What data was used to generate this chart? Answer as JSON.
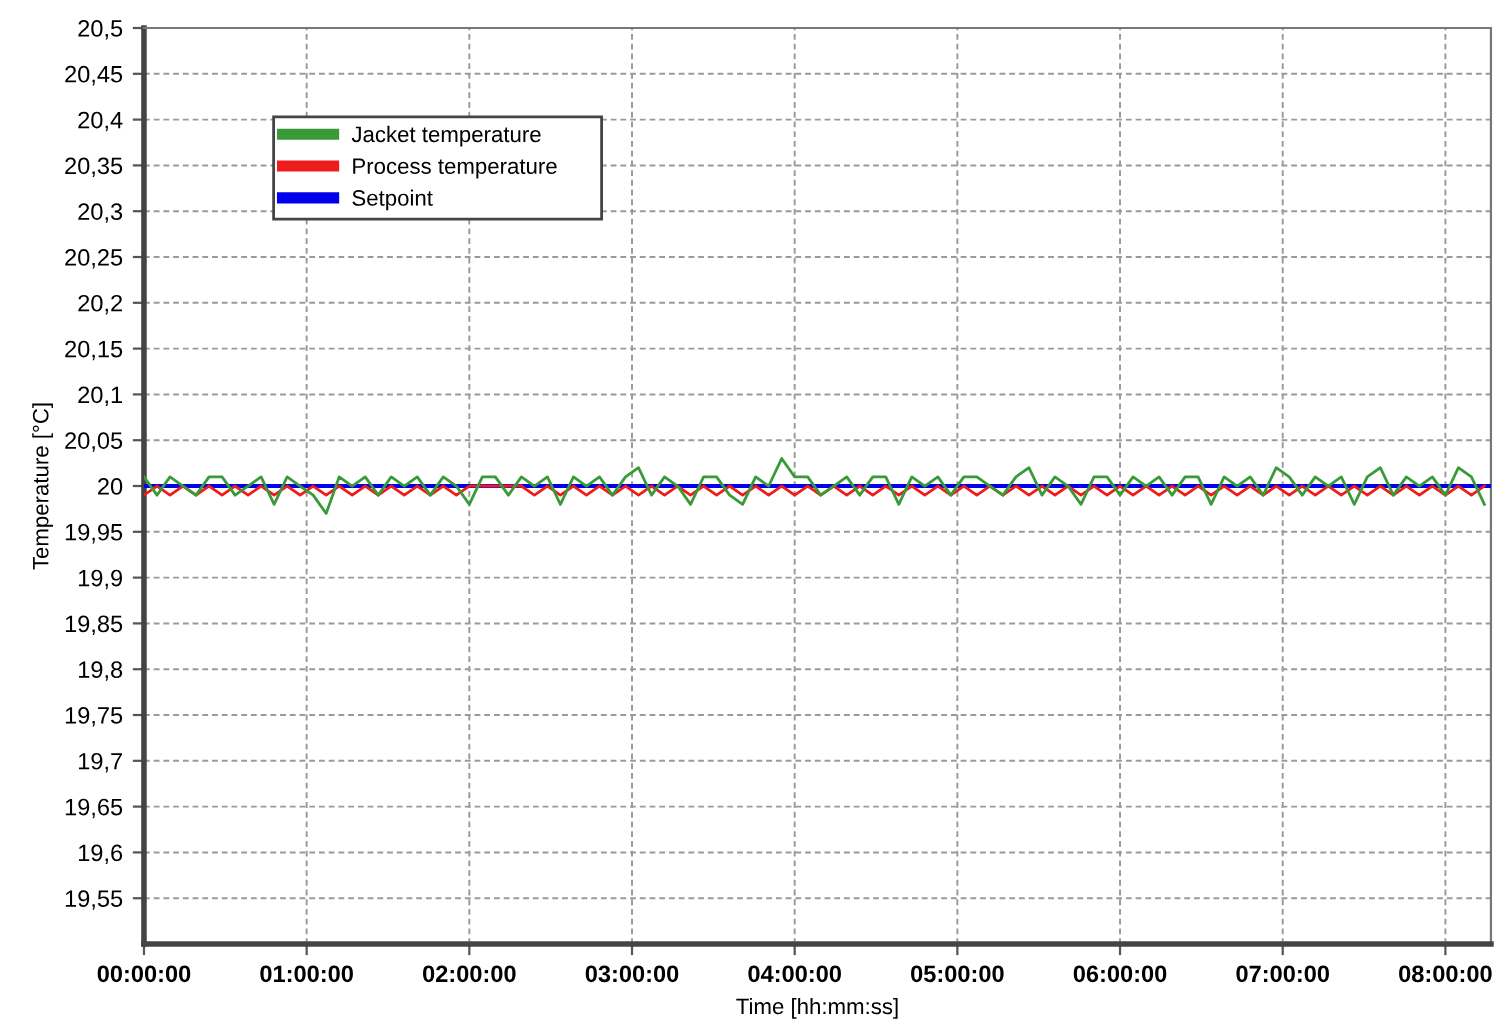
{
  "chart_data": {
    "type": "line",
    "xlabel": "Time [hh:mm:ss]",
    "ylabel": "Temperature [°C]",
    "x": [
      0,
      0.08,
      0.16,
      0.24,
      0.32,
      0.4,
      0.48,
      0.56,
      0.64,
      0.72,
      0.8,
      0.88,
      0.96,
      1.04,
      1.12,
      1.2,
      1.28,
      1.36,
      1.44,
      1.52,
      1.6,
      1.68,
      1.76,
      1.84,
      1.92,
      2,
      2.08,
      2.16,
      2.24,
      2.32,
      2.4,
      2.48,
      2.56,
      2.64,
      2.72,
      2.8,
      2.88,
      2.96,
      3.04,
      3.12,
      3.2,
      3.28,
      3.36,
      3.44,
      3.52,
      3.6,
      3.68,
      3.76,
      3.84,
      3.92,
      4,
      4.08,
      4.16,
      4.24,
      4.32,
      4.4,
      4.48,
      4.56,
      4.64,
      4.72,
      4.8,
      4.88,
      4.96,
      5.04,
      5.12,
      5.2,
      5.28,
      5.36,
      5.44,
      5.52,
      5.6,
      5.68,
      5.76,
      5.84,
      5.92,
      6,
      6.08,
      6.16,
      6.24,
      6.32,
      6.4,
      6.48,
      6.56,
      6.64,
      6.72,
      6.8,
      6.88,
      6.96,
      7.04,
      7.12,
      7.2,
      7.28,
      7.36,
      7.44,
      7.52,
      7.6,
      7.68,
      7.76,
      7.84,
      7.92,
      8,
      8.08,
      8.16,
      8.24
    ],
    "series": [
      {
        "name": "Jacket temperature",
        "color": "#3a9a3a",
        "values": [
          20.01,
          19.99,
          20.01,
          20,
          19.99,
          20.01,
          20.01,
          19.99,
          20,
          20.01,
          19.98,
          20.01,
          20,
          19.99,
          19.97,
          20.01,
          20,
          20.01,
          19.99,
          20.01,
          20,
          20.01,
          19.99,
          20.01,
          20,
          19.98,
          20.01,
          20.01,
          19.99,
          20.01,
          20,
          20.01,
          19.98,
          20.01,
          20,
          20.01,
          19.99,
          20.01,
          20.02,
          19.99,
          20.01,
          20,
          19.98,
          20.01,
          20.01,
          19.99,
          19.98,
          20.01,
          20,
          20.03,
          20.01,
          20.01,
          19.99,
          20,
          20.01,
          19.99,
          20.01,
          20.01,
          19.98,
          20.01,
          20,
          20.01,
          19.99,
          20.01,
          20.01,
          20,
          19.99,
          20.01,
          20.02,
          19.99,
          20.01,
          20,
          19.98,
          20.01,
          20.01,
          19.99,
          20.01,
          20,
          20.01,
          19.99,
          20.01,
          20.01,
          19.98,
          20.01,
          20,
          20.01,
          19.99,
          20.02,
          20.01,
          19.99,
          20.01,
          20,
          20.01,
          19.98,
          20.01,
          20.02,
          19.99,
          20.01,
          20,
          20.01,
          19.99,
          20.02,
          20.01,
          19.98
        ]
      },
      {
        "name": "Process temperature",
        "color": "#ee1c1c",
        "values": [
          19.99,
          20,
          19.99,
          20,
          19.99,
          20,
          19.99,
          20,
          19.99,
          20,
          19.99,
          20,
          19.99,
          20,
          19.99,
          20,
          19.99,
          20,
          19.99,
          20,
          19.99,
          20,
          19.99,
          20,
          19.99,
          20,
          20,
          20,
          20,
          20,
          19.99,
          20,
          19.99,
          20,
          19.99,
          20,
          19.99,
          20,
          19.99,
          20,
          19.99,
          20,
          19.99,
          20,
          19.99,
          20,
          19.99,
          20,
          19.99,
          20,
          19.99,
          20,
          19.99,
          20,
          19.99,
          20,
          19.99,
          20,
          19.99,
          20,
          19.99,
          20,
          19.99,
          20,
          19.99,
          20,
          19.99,
          20,
          19.99,
          20,
          19.99,
          20,
          19.99,
          20,
          19.99,
          20,
          19.99,
          20,
          19.99,
          20,
          19.99,
          20,
          19.99,
          20,
          19.99,
          20,
          19.99,
          20,
          19.99,
          20,
          19.99,
          20,
          19.99,
          20,
          19.99,
          20,
          19.99,
          20,
          19.99,
          20,
          19.99,
          20,
          19.99,
          20
        ]
      },
      {
        "name": "Setpoint",
        "color": "#0000ee",
        "x": [
          0,
          8.28
        ],
        "values": [
          20,
          20
        ]
      }
    ],
    "xlim": [
      0,
      8.28
    ],
    "ylim": [
      19.5,
      20.5
    ],
    "xticks": [
      {
        "value": 0,
        "label": "00:00:00"
      },
      {
        "value": 1,
        "label": "01:00:00"
      },
      {
        "value": 2,
        "label": "02:00:00"
      },
      {
        "value": 3,
        "label": "03:00:00"
      },
      {
        "value": 4,
        "label": "04:00:00"
      },
      {
        "value": 5,
        "label": "05:00:00"
      },
      {
        "value": 6,
        "label": "06:00:00"
      },
      {
        "value": 7,
        "label": "07:00:00"
      },
      {
        "value": 8,
        "label": "08:00:00"
      }
    ],
    "yticks": [
      {
        "value": 19.55,
        "label": "19,55"
      },
      {
        "value": 19.6,
        "label": "19,6"
      },
      {
        "value": 19.65,
        "label": "19,65"
      },
      {
        "value": 19.7,
        "label": "19,7"
      },
      {
        "value": 19.75,
        "label": "19,75"
      },
      {
        "value": 19.8,
        "label": "19,8"
      },
      {
        "value": 19.85,
        "label": "19,85"
      },
      {
        "value": 19.9,
        "label": "19,9"
      },
      {
        "value": 19.95,
        "label": "19,95"
      },
      {
        "value": 20,
        "label": "20"
      },
      {
        "value": 20.05,
        "label": "20,05"
      },
      {
        "value": 20.1,
        "label": "20,1"
      },
      {
        "value": 20.15,
        "label": "20,15"
      },
      {
        "value": 20.2,
        "label": "20,2"
      },
      {
        "value": 20.25,
        "label": "20,25"
      },
      {
        "value": 20.3,
        "label": "20,3"
      },
      {
        "value": 20.35,
        "label": "20,35"
      },
      {
        "value": 20.4,
        "label": "20,4"
      },
      {
        "value": 20.45,
        "label": "20,45"
      },
      {
        "value": 20.5,
        "label": "20,5"
      }
    ],
    "grid": true,
    "legend": "top left",
    "marker": "none",
    "line_style": "solid"
  }
}
